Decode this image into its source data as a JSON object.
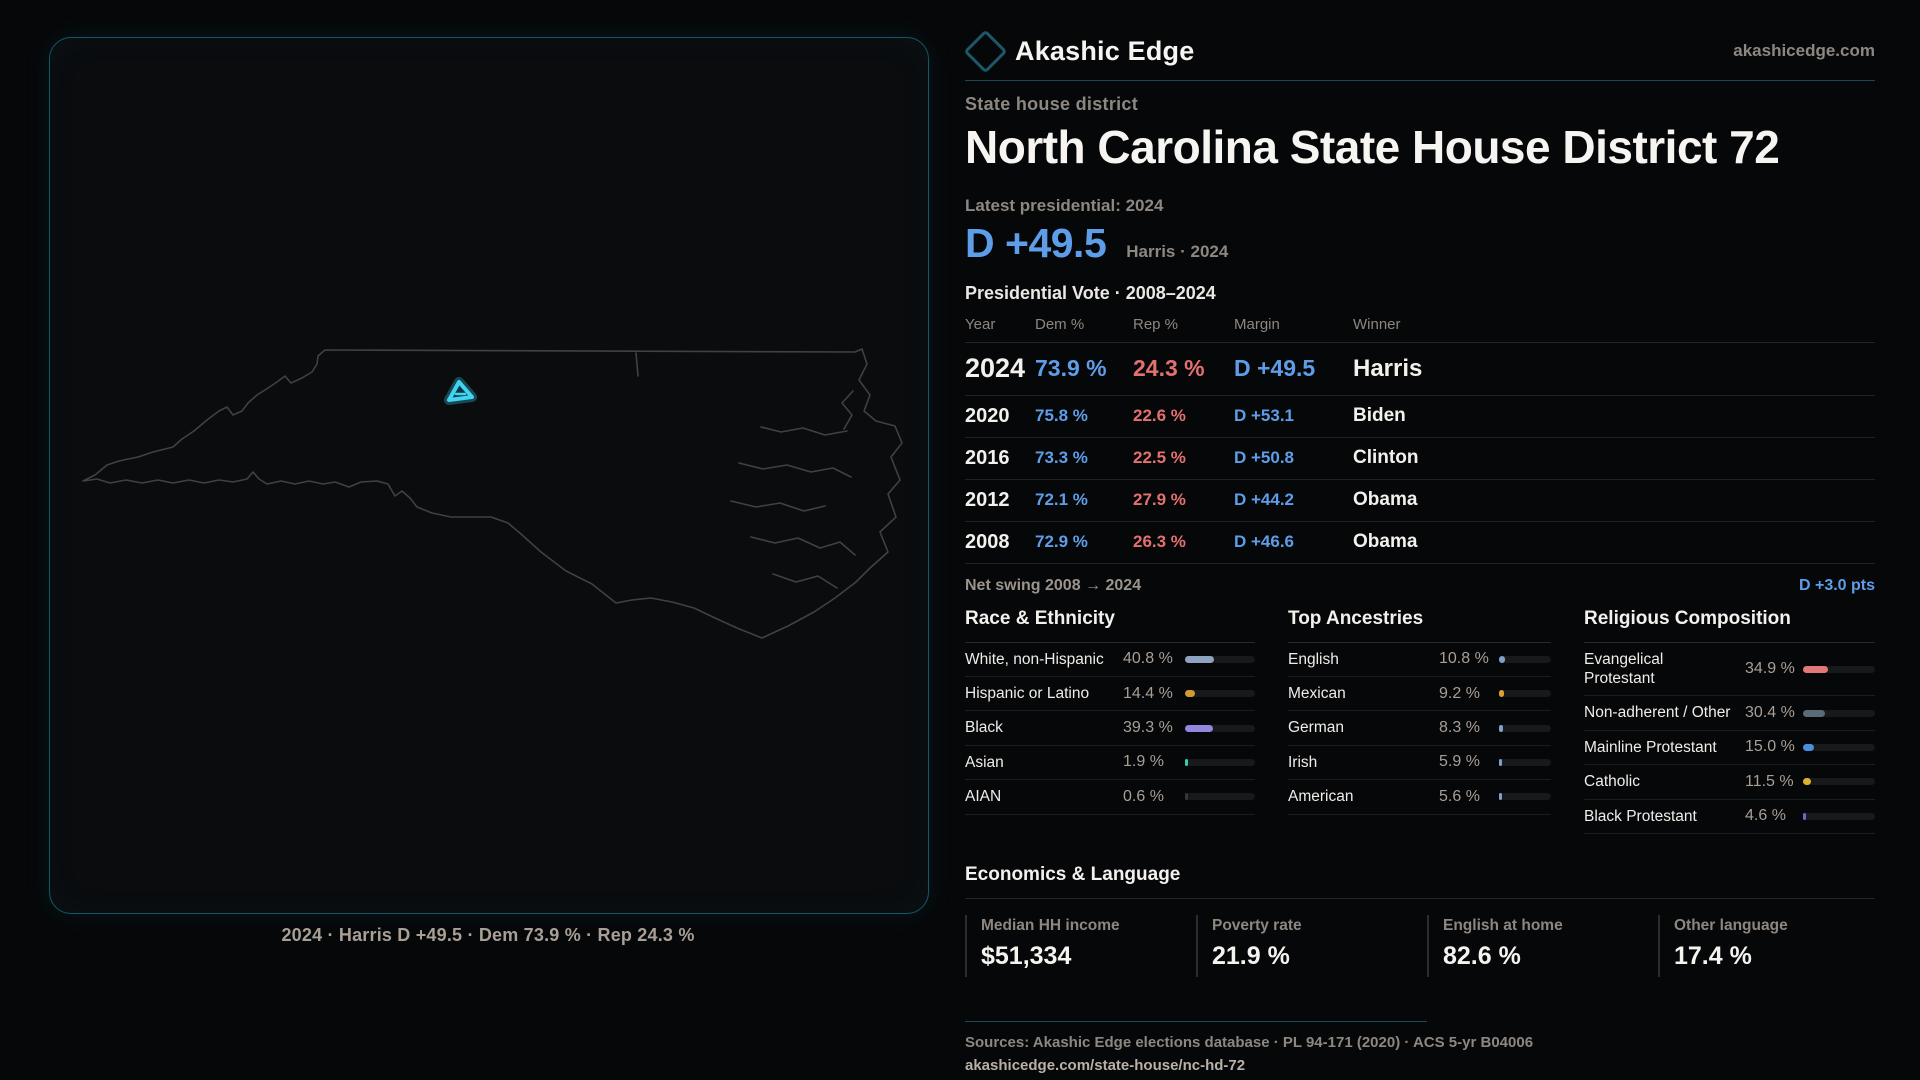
{
  "brand": {
    "name": "Akashic Edge",
    "domain": "akashicedge.com"
  },
  "header": {
    "kicker": "State house district",
    "title": "North Carolina State House District 72",
    "latest_label": "Latest presidential: 2024",
    "margin_big": "D +49.5",
    "margin_context": "Harris · 2024"
  },
  "table": {
    "title": "Presidential Vote · 2008–2024",
    "columns": [
      "Year",
      "Dem %",
      "Rep %",
      "Margin",
      "Winner"
    ],
    "rows": [
      {
        "year": "2024",
        "dem": "73.9 %",
        "rep": "24.3 %",
        "margin": "D +49.5",
        "winner": "Harris",
        "highlight": true
      },
      {
        "year": "2020",
        "dem": "75.8 %",
        "rep": "22.6 %",
        "margin": "D +53.1",
        "winner": "Biden",
        "highlight": false
      },
      {
        "year": "2016",
        "dem": "73.3 %",
        "rep": "22.5 %",
        "margin": "D +50.8",
        "winner": "Clinton",
        "highlight": false
      },
      {
        "year": "2012",
        "dem": "72.1 %",
        "rep": "27.9 %",
        "margin": "D +44.2",
        "winner": "Obama",
        "highlight": false
      },
      {
        "year": "2008",
        "dem": "72.9 %",
        "rep": "26.3 %",
        "margin": "D +46.6",
        "winner": "Obama",
        "highlight": false
      }
    ]
  },
  "net_swing": {
    "label": "Net swing 2008 → 2024",
    "value": "D +3.0 pts"
  },
  "demographics": [
    {
      "title": "Race & Ethnicity",
      "rows": [
        {
          "label": "White, non-Hispanic",
          "value": "40.8 %",
          "pct": 40.8,
          "color": "#8fa3c0"
        },
        {
          "label": "Hispanic or Latino",
          "value": "14.4 %",
          "pct": 14.4,
          "color": "#d49a2e"
        },
        {
          "label": "Black",
          "value": "39.3 %",
          "pct": 39.3,
          "color": "#9485dd"
        },
        {
          "label": "Asian",
          "value": "1.9 %",
          "pct": 1.9,
          "color": "#2fd0b0"
        },
        {
          "label": "AIAN",
          "value": "0.6 %",
          "pct": 0.6,
          "color": "#34383b"
        }
      ]
    },
    {
      "title": "Top Ancestries",
      "rows": [
        {
          "label": "English",
          "value": "10.8 %",
          "pct": 10.8,
          "color": "#7fa0c8"
        },
        {
          "label": "Mexican",
          "value": "9.2 %",
          "pct": 9.2,
          "color": "#dd9f35"
        },
        {
          "label": "German",
          "value": "8.3 %",
          "pct": 8.3,
          "color": "#7fa0c8"
        },
        {
          "label": "Irish",
          "value": "5.9 %",
          "pct": 5.9,
          "color": "#7fa0c8"
        },
        {
          "label": "American",
          "value": "5.6 %",
          "pct": 5.6,
          "color": "#7fa0c8"
        }
      ]
    },
    {
      "title": "Religious Composition",
      "rows": [
        {
          "label": "Evangelical Protestant",
          "value": "34.9 %",
          "pct": 34.9,
          "color": "#e07878"
        },
        {
          "label": "Non-adherent / Other",
          "value": "30.4 %",
          "pct": 30.4,
          "color": "#5a6a78"
        },
        {
          "label": "Mainline Protestant",
          "value": "15.0 %",
          "pct": 15.0,
          "color": "#4a8fe0"
        },
        {
          "label": "Catholic",
          "value": "11.5 %",
          "pct": 11.5,
          "color": "#ddb032"
        },
        {
          "label": "Black Protestant",
          "value": "4.6 %",
          "pct": 4.6,
          "color": "#7a5fd0"
        }
      ]
    }
  ],
  "economics": {
    "title": "Economics & Language",
    "stats": [
      {
        "label": "Median HH income",
        "value": "$51,334"
      },
      {
        "label": "Poverty rate",
        "value": "21.9 %"
      },
      {
        "label": "English at home",
        "value": "82.6 %"
      },
      {
        "label": "Other language",
        "value": "17.4 %"
      }
    ]
  },
  "footer": {
    "sources": "Sources: Akashic Edge elections database · PL 94-171 (2020) · ACS 5-yr B04006",
    "permalink": "akashicedge.com/state-house/nc-hd-72"
  },
  "map": {
    "caption": "2024 · Harris D +49.5 · Dem 73.9 % · Rep 24.3 %",
    "highlight_color": "#41d4f1",
    "outline_color": "#3e4245"
  }
}
